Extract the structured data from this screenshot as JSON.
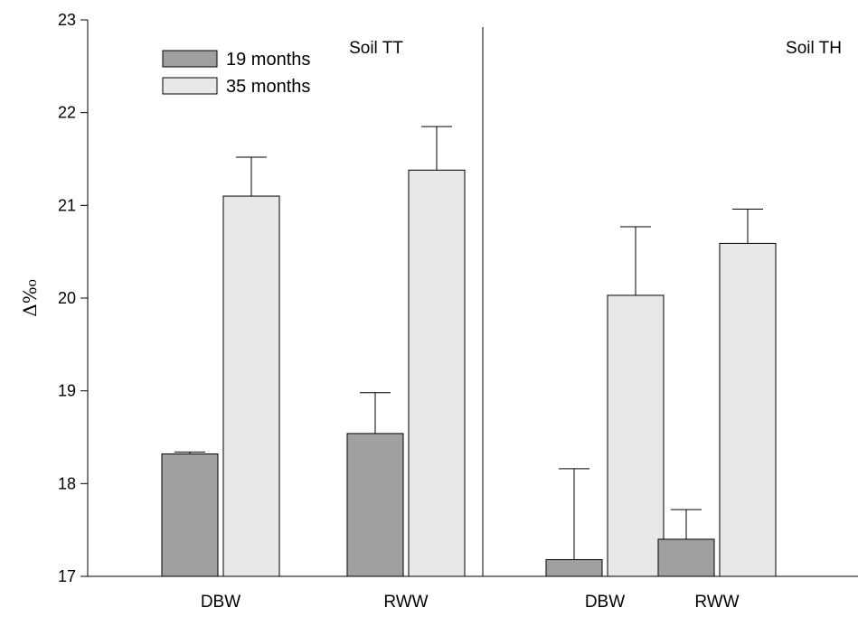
{
  "chart_data": {
    "type": "bar",
    "title": "",
    "xlabel": "",
    "ylabel": "Δ%₀",
    "ylim": [
      17,
      23
    ],
    "yticks": [
      17,
      18,
      19,
      20,
      21,
      22,
      23
    ],
    "grid": false,
    "legend_position": "top-left",
    "colors": {
      "19 months": "#a0a0a0",
      "35 months": "#e8e8e8"
    },
    "panels": [
      {
        "label": "Soil TT",
        "categories": [
          "DBW",
          "RWW"
        ],
        "series": [
          {
            "name": "19 months",
            "values": [
              18.32,
              18.54
            ],
            "errors": [
              0.02,
              0.44
            ]
          },
          {
            "name": "35 months",
            "values": [
              21.1,
              21.38
            ],
            "errors": [
              0.42,
              0.47
            ]
          }
        ]
      },
      {
        "label": "Soil TH",
        "categories": [
          "DBW",
          "RWW"
        ],
        "series": [
          {
            "name": "19 months",
            "values": [
              17.18,
              17.4
            ],
            "errors": [
              0.98,
              0.32
            ]
          },
          {
            "name": "35 months",
            "values": [
              20.03,
              20.59
            ],
            "errors": [
              0.74,
              0.37
            ]
          }
        ]
      }
    ]
  }
}
